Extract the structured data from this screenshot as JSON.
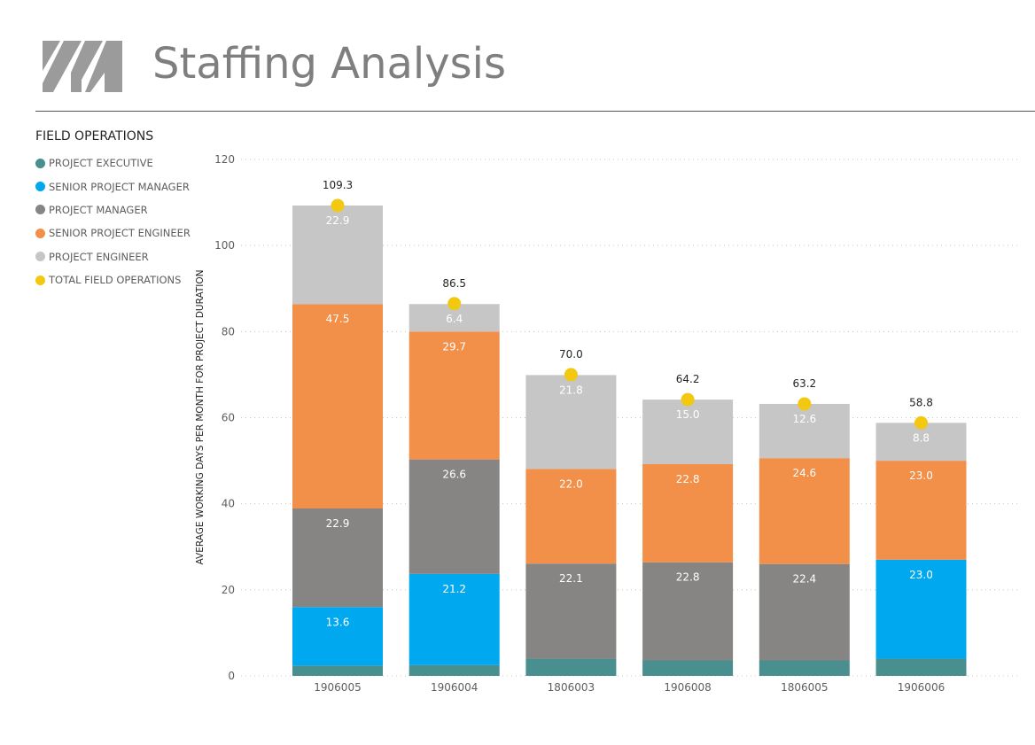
{
  "header": {
    "title": "Staffing Analysis",
    "logo_icon": "im-logo-icon"
  },
  "legend": {
    "title": "FIELD OPERATIONS",
    "items": [
      {
        "label": "PROJECT EXECUTIVE",
        "color": "#4a8f90"
      },
      {
        "label": "SENIOR PROJECT MANAGER",
        "color": "#00a8f0"
      },
      {
        "label": "PROJECT MANAGER",
        "color": "#878583"
      },
      {
        "label": "SENIOR PROJECT ENGINEER",
        "color": "#f28f48"
      },
      {
        "label": "PROJECT ENGINEER",
        "color": "#c6c6c6"
      },
      {
        "label": "TOTAL FIELD OPERATIONS",
        "color": "#f2c811"
      }
    ]
  },
  "chart_data": {
    "type": "bar",
    "stacked": true,
    "ylabel": "AVERAGE WORKING DAYS PER MONTH FOR PROJECT DURATION",
    "xlabel": "",
    "ylim": [
      0,
      120
    ],
    "yticks": [
      0,
      20,
      40,
      60,
      80,
      100,
      120
    ],
    "grid": true,
    "legend_position": "left",
    "categories": [
      "1906005",
      "1906004",
      "1806003",
      "1906008",
      "1806005",
      "1906006"
    ],
    "series": [
      {
        "name": "PROJECT EXECUTIVE",
        "color": "#4a8f90",
        "values": [
          2.4,
          2.5,
          4.0,
          3.6,
          3.6,
          4.0
        ],
        "labels": [
          "",
          "",
          "",
          "",
          "",
          ""
        ]
      },
      {
        "name": "SENIOR PROJECT MANAGER",
        "color": "#00a8f0",
        "values": [
          13.6,
          21.2,
          0,
          0,
          0,
          23.0
        ],
        "labels": [
          "13.6",
          "21.2",
          "",
          "",
          "",
          "23.0"
        ]
      },
      {
        "name": "PROJECT MANAGER",
        "color": "#878583",
        "values": [
          22.9,
          26.6,
          22.1,
          22.8,
          22.4,
          0
        ],
        "labels": [
          "22.9",
          "26.6",
          "22.1",
          "22.8",
          "22.4",
          ""
        ]
      },
      {
        "name": "SENIOR PROJECT ENGINEER",
        "color": "#f28f48",
        "values": [
          47.5,
          29.7,
          22.0,
          22.8,
          24.6,
          23.0
        ],
        "labels": [
          "47.5",
          "29.7",
          "22.0",
          "22.8",
          "24.6",
          "23.0"
        ]
      },
      {
        "name": "PROJECT ENGINEER",
        "color": "#c6c6c6",
        "values": [
          22.9,
          6.4,
          21.8,
          15.0,
          12.6,
          8.8
        ],
        "labels": [
          "22.9",
          "6.4",
          "21.8",
          "15.0",
          "12.6",
          "8.8"
        ]
      }
    ],
    "totals": {
      "name": "TOTAL FIELD OPERATIONS",
      "color": "#f2c811",
      "values": [
        109.3,
        86.5,
        70.0,
        64.2,
        63.2,
        58.8
      ],
      "labels": [
        "109.3",
        "86.5",
        "70.0",
        "64.2",
        "63.2",
        "58.8"
      ]
    }
  }
}
